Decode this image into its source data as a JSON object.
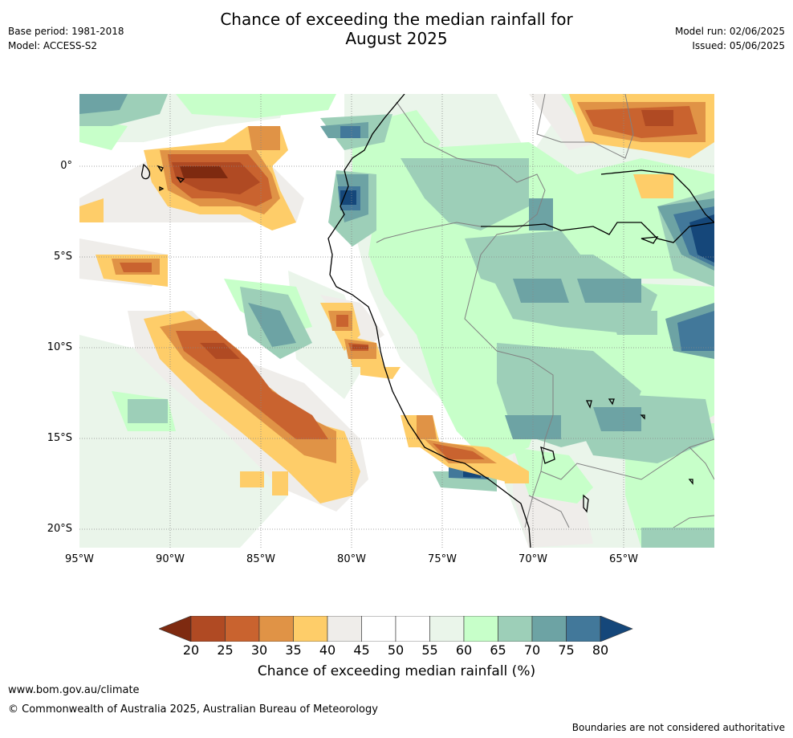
{
  "header": {
    "title_line1": "Chance of exceeding the median rainfall for",
    "title_line2": "August 2025",
    "base_period": "Base period: 1981-2018",
    "model": "Model: ACCESS-S2",
    "model_run": "Model run: 02/06/2025",
    "issued": "Issued: 05/06/2025"
  },
  "map": {
    "lat_labels": [
      "0°",
      "5°S",
      "10°S",
      "15°S",
      "20°S"
    ],
    "lon_labels": [
      "95°W",
      "90°W",
      "85°W",
      "80°W",
      "75°W",
      "70°W",
      "65°W"
    ],
    "extent": {
      "lon_min": -95,
      "lon_max": -60,
      "lat_min": -21,
      "lat_max": 4
    }
  },
  "colorbar": {
    "title": "Chance of exceeding median rainfall (%)",
    "ticks": [
      "20",
      "25",
      "30",
      "35",
      "40",
      "45",
      "50",
      "55",
      "60",
      "65",
      "70",
      "75",
      "80"
    ],
    "colors": [
      "#7e2a10",
      "#b04a23",
      "#c9632f",
      "#e09346",
      "#fecd69",
      "#efedea",
      "#ffffff",
      "#ffffff",
      "#eaf5ea",
      "#c7ffc9",
      "#9dcfb8",
      "#6da3a4",
      "#42789a",
      "#15477a"
    ]
  },
  "footer": {
    "url": "www.bom.gov.au/climate",
    "copyright": "© Commonwealth of Australia 2025, Australian Bureau of Meteorology",
    "disclaimer": "Boundaries are not considered authoritative"
  }
}
